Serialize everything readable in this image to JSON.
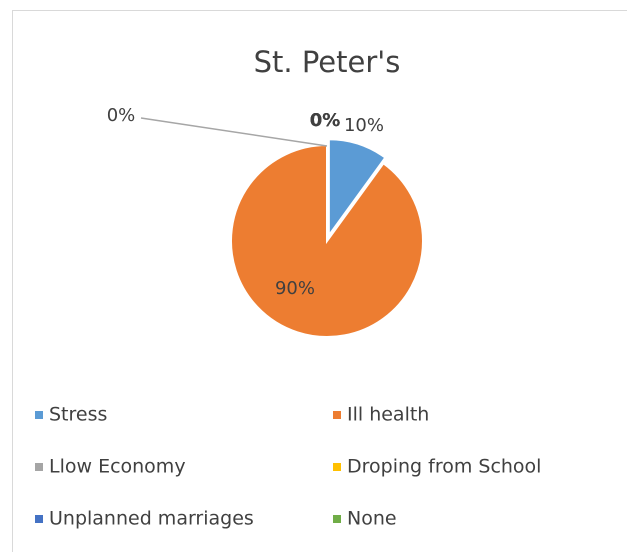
{
  "chart_data": {
    "type": "pie",
    "title": "St. Peter's",
    "categories": [
      "Stress",
      "Ill health",
      "Llow Economy",
      "Droping from School",
      "Unplanned marriages",
      "None"
    ],
    "values": [
      10,
      90,
      0,
      0,
      0,
      0
    ],
    "value_labels": [
      "10%",
      "90%",
      "0%",
      "0%",
      "0%",
      "0%"
    ],
    "colors": [
      "#5b9bd5",
      "#ed7d31",
      "#a5a5a5",
      "#ffc000",
      "#4472c4",
      "#70ad47"
    ],
    "legend": "bottom"
  }
}
